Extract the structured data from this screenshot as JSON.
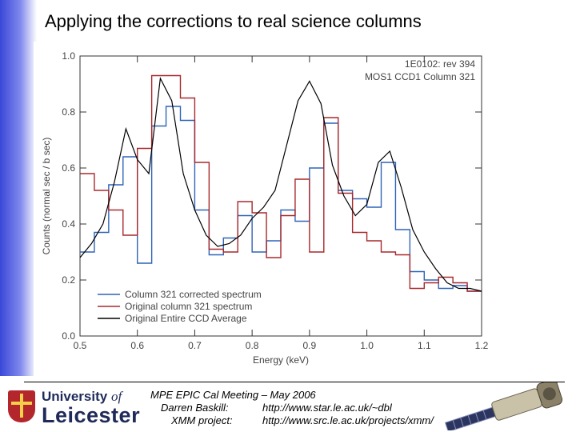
{
  "slide": {
    "title": "Applying the corrections to real science columns"
  },
  "footer": {
    "meeting": "MPE EPIC Cal Meeting – May 2006",
    "author_label": "Darren Baskill:",
    "author_url": "http://www.star.le.ac.uk/~dbl",
    "project_label": "XMM project:",
    "project_url": "http://www.src.le.ac.uk/projects/xmm/",
    "university_line1": "University",
    "university_of": "of",
    "university_line2": "Leicester"
  },
  "colors": {
    "sidebar": "#3a48d8",
    "red_series": "#a8282c",
    "blue_series": "#2f64b8",
    "original_series": "#000000",
    "shield": "#b3262c"
  },
  "chart_data": {
    "type": "line",
    "title": "",
    "xlabel": "Energy (keV)",
    "ylabel": "Counts (normal sec / b sec)",
    "xlim": [
      0.5,
      1.2
    ],
    "ylim": [
      0.0,
      1.0
    ],
    "xticks": [
      0.5,
      0.6,
      0.7,
      0.8,
      0.9,
      1.0,
      1.1,
      1.2
    ],
    "xtick_labels": [
      "0.5",
      "0.6",
      "0.7",
      "0.8",
      "0.9",
      "1.0",
      "1.1",
      "1.2"
    ],
    "yticks": [
      0.0,
      0.2,
      0.4,
      0.6,
      0.8,
      1.0
    ],
    "ytick_labels": [
      "0.0",
      "0.2",
      "0.4",
      "0.6",
      "0.8",
      "1.0"
    ],
    "annotations": [
      "1E0102: rev 394",
      "MOS1 CCD1 Column 321"
    ],
    "legend": [
      "Column 321 corrected spectrum",
      "Original column 321 spectrum",
      "Original Entire CCD Average"
    ],
    "legend_position": "bottom-left",
    "series": [
      {
        "name": "Column 321 corrected spectrum",
        "style": "step",
        "color": "#2f64b8",
        "x": [
          0.5,
          0.525,
          0.55,
          0.575,
          0.6,
          0.625,
          0.65,
          0.675,
          0.7,
          0.725,
          0.75,
          0.775,
          0.8,
          0.825,
          0.85,
          0.875,
          0.9,
          0.925,
          0.95,
          0.975,
          1.0,
          1.025,
          1.05,
          1.075,
          1.1,
          1.125,
          1.15,
          1.175,
          1.2
        ],
        "values": [
          0.3,
          0.37,
          0.54,
          0.64,
          0.26,
          0.75,
          0.82,
          0.77,
          0.45,
          0.29,
          0.35,
          0.43,
          0.3,
          0.34,
          0.45,
          0.41,
          0.6,
          0.76,
          0.52,
          0.49,
          0.46,
          0.62,
          0.38,
          0.23,
          0.2,
          0.17,
          0.18,
          0.16,
          0.15
        ]
      },
      {
        "name": "Original column 321 spectrum",
        "style": "step",
        "color": "#a8282c",
        "x": [
          0.5,
          0.525,
          0.55,
          0.575,
          0.6,
          0.625,
          0.65,
          0.675,
          0.7,
          0.725,
          0.75,
          0.775,
          0.8,
          0.825,
          0.85,
          0.875,
          0.9,
          0.925,
          0.95,
          0.975,
          1.0,
          1.025,
          1.05,
          1.075,
          1.1,
          1.125,
          1.15,
          1.175,
          1.2
        ],
        "values": [
          0.58,
          0.52,
          0.45,
          0.36,
          0.67,
          0.93,
          0.93,
          0.85,
          0.62,
          0.31,
          0.3,
          0.48,
          0.44,
          0.28,
          0.43,
          0.56,
          0.3,
          0.78,
          0.51,
          0.37,
          0.34,
          0.3,
          0.29,
          0.17,
          0.19,
          0.21,
          0.19,
          0.16,
          0.15
        ]
      },
      {
        "name": "Original Entire CCD Average",
        "style": "line",
        "color": "#000000",
        "x": [
          0.5,
          0.52,
          0.54,
          0.56,
          0.58,
          0.6,
          0.62,
          0.64,
          0.66,
          0.68,
          0.7,
          0.72,
          0.74,
          0.76,
          0.78,
          0.8,
          0.82,
          0.84,
          0.86,
          0.88,
          0.9,
          0.92,
          0.94,
          0.96,
          0.98,
          1.0,
          1.02,
          1.04,
          1.06,
          1.08,
          1.1,
          1.12,
          1.14,
          1.16,
          1.18,
          1.2
        ],
        "values": [
          0.28,
          0.33,
          0.4,
          0.55,
          0.74,
          0.63,
          0.58,
          0.92,
          0.84,
          0.58,
          0.45,
          0.36,
          0.32,
          0.33,
          0.36,
          0.42,
          0.46,
          0.52,
          0.68,
          0.84,
          0.91,
          0.83,
          0.61,
          0.5,
          0.43,
          0.47,
          0.62,
          0.66,
          0.53,
          0.38,
          0.3,
          0.24,
          0.19,
          0.17,
          0.17,
          0.16
        ]
      }
    ]
  }
}
